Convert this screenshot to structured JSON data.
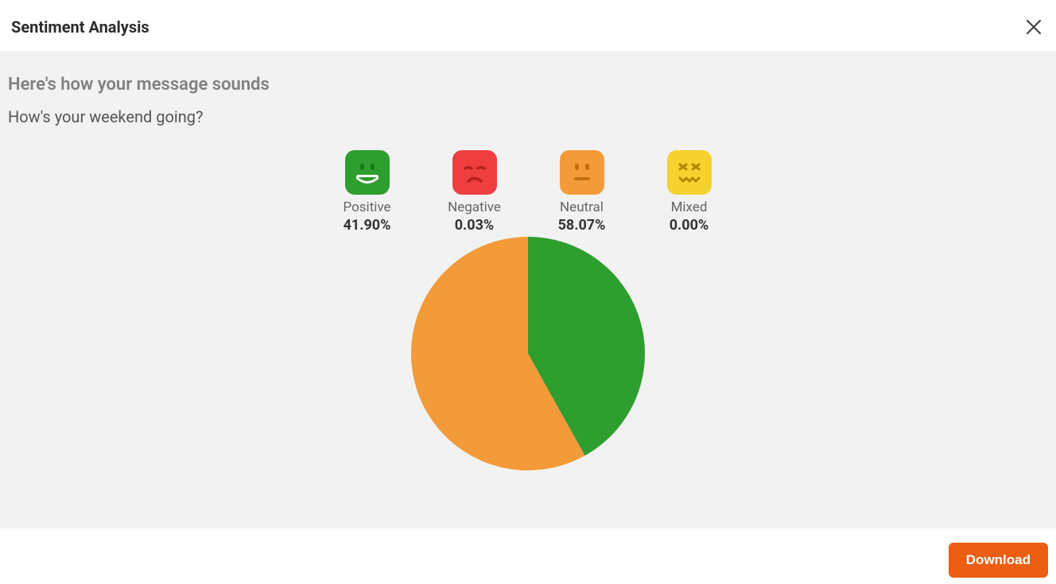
{
  "header": {
    "title": "Sentiment Analysis"
  },
  "content": {
    "subtitle": "Here's how your message sounds",
    "message": "How's your weekend going?"
  },
  "sentiments": [
    {
      "key": "positive",
      "label": "Positive",
      "value_pct": 41.9,
      "value_text": "41.90%",
      "emoji_bg": "#2e9e2e",
      "face_color": "#0f7a10"
    },
    {
      "key": "negative",
      "label": "Negative",
      "value_pct": 0.03,
      "value_text": "0.03%",
      "emoji_bg": "#ee3e3e",
      "face_color": "#b72020"
    },
    {
      "key": "neutral",
      "label": "Neutral",
      "value_pct": 58.07,
      "value_text": "58.07%",
      "emoji_bg": "#f29b38",
      "face_color": "#c26f11"
    },
    {
      "key": "mixed",
      "label": "Mixed",
      "value_pct": 0.0,
      "value_text": "0.00%",
      "emoji_bg": "#f6d22e",
      "face_color": "#b38700"
    }
  ],
  "pie_chart": {
    "type": "pie",
    "radius": 147,
    "slices": [
      {
        "key": "positive",
        "pct": 41.9,
        "color": "#2e9e2e"
      },
      {
        "key": "negative",
        "pct": 0.03,
        "color": "#ee3e3e"
      },
      {
        "key": "neutral",
        "pct": 58.07,
        "color": "#f29b38"
      },
      {
        "key": "mixed",
        "pct": 0.0,
        "color": "#f6d22e"
      }
    ],
    "background_color": "#f2f2f2"
  },
  "footer": {
    "download_label": "Download",
    "download_bg": "#eb5e13",
    "download_fg": "#ffffff"
  },
  "colors": {
    "page_bg": "#ffffff",
    "content_bg": "#f2f2f2",
    "title_color": "#2b2b2b",
    "subtitle_color": "#808080",
    "message_color": "#555555",
    "label_color": "#666666",
    "value_color": "#333333"
  }
}
